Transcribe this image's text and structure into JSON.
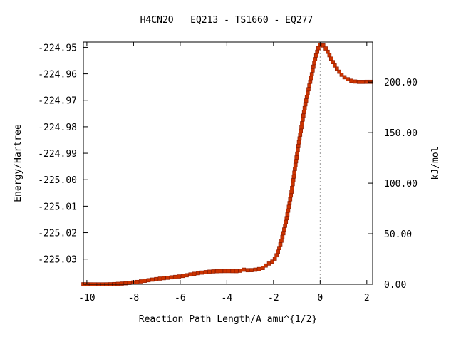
{
  "title": "H4CN2O   EQ213 - TS1660 - EQ277",
  "chart_data": {
    "type": "line",
    "title": "H4CN2O   EQ213 - TS1660 - EQ277",
    "xlabel": "Reaction Path Length/A amu^{1/2}",
    "ylabel": "Energy/Hartree",
    "y2label": "kJ/mol",
    "xlim": [
      -10.15,
      2.25
    ],
    "ylim": [
      -225.0395,
      -224.948
    ],
    "y2lim": [
      0,
      239.6
    ],
    "x_ticks": [
      -10,
      -8,
      -6,
      -4,
      -2,
      0,
      2
    ],
    "x_tick_labels": [
      "-10",
      "-8",
      "-6",
      "-4",
      "-2",
      "0",
      "2"
    ],
    "y_ticks": [
      -224.95,
      -224.96,
      -224.97,
      -224.98,
      -224.99,
      -225.0,
      -225.01,
      -225.02,
      -225.03
    ],
    "y_tick_labels": [
      "-224.95",
      "-224.96",
      "-224.97",
      "-224.98",
      "-224.99",
      "-225.00",
      "-225.01",
      "-225.02",
      "-225.03"
    ],
    "y2_ticks": [
      0,
      50,
      100,
      150,
      200
    ],
    "y2_tick_labels": [
      "0.00",
      "50.00",
      "100.00",
      "150.00",
      "200.00"
    ],
    "ts_x": 0,
    "grid": false,
    "legend": "none",
    "colors": {
      "line": "#00b000",
      "marker": "#cc3300",
      "ts_marker_line": "#999999"
    },
    "series": [
      {
        "x": [
          -10.15,
          -9.0,
          -8.0,
          -7.0,
          -6.0,
          -5.5,
          -5.0,
          -4.5,
          -4.0,
          -3.5,
          -3.3,
          -3.0,
          -2.5,
          -2.3,
          -2.0,
          -1.8,
          -1.6,
          -1.4,
          -1.2,
          -1.0,
          -0.8,
          -0.6,
          -0.4,
          -0.2,
          0.0,
          0.2,
          0.4,
          0.6,
          0.8,
          1.0,
          1.3,
          1.6,
          2.0,
          2.25
        ],
        "y": [
          -225.0395,
          -225.0395,
          -225.0388,
          -225.0375,
          -225.0365,
          -225.0357,
          -225.035,
          -225.0346,
          -225.0345,
          -225.0345,
          -225.034,
          -225.0342,
          -225.0335,
          -225.0322,
          -225.0305,
          -225.027,
          -225.021,
          -225.013,
          -225.003,
          -224.991,
          -224.98,
          -224.97,
          -224.962,
          -224.954,
          -224.949,
          -224.95,
          -224.953,
          -224.9565,
          -224.959,
          -224.961,
          -224.9625,
          -224.963,
          -224.963,
          -224.963
        ]
      }
    ]
  }
}
